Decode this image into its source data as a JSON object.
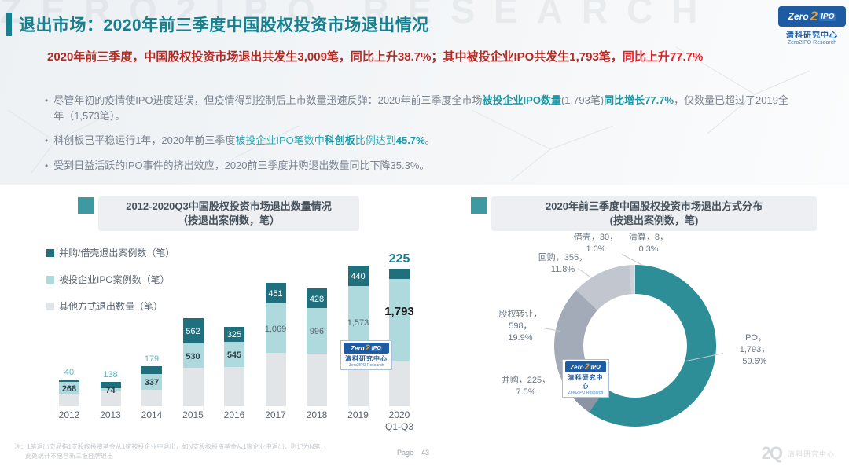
{
  "slide": {
    "title": "退出市场：2020年前三季度中国股权投资市场退出情况",
    "watermark_top": "ZERO2IPO RESEARCH",
    "summary_segments": [
      {
        "text": "2020年前三季度，中国股权投资市场退出共发生3,009笔，同比上升38.7%；其中被投企业IPO共发生1,793笔，",
        "style": "dark-red"
      },
      {
        "text": "同比上升77.7%",
        "style": "bright-red"
      }
    ],
    "bullets": [
      {
        "segments": [
          {
            "text": "尽管年初的疫情使IPO进度延误，但疫情得到控制后上市数量迅速反弹：2020年前三季度全市场",
            "style": "g"
          },
          {
            "text": "被投企业IPO数量",
            "style": "tb"
          },
          {
            "text": "(1,793笔)",
            "style": "g"
          },
          {
            "text": "同比增长77.7%",
            "style": "tb"
          },
          {
            "text": "，仅数量已超过了2019全年（1,573笔）。",
            "style": "g"
          }
        ]
      },
      {
        "segments": [
          {
            "text": "科创板已平稳运行1年，2020年前三季度",
            "style": "g"
          },
          {
            "text": "被投企业IPO笔数中",
            "style": "t"
          },
          {
            "text": "科创板",
            "style": "tb"
          },
          {
            "text": "比例达到",
            "style": "t"
          },
          {
            "text": "45.7%",
            "style": "tb"
          },
          {
            "text": "。",
            "style": "g"
          }
        ]
      },
      {
        "segments": [
          {
            "text": "受到日益活跃的IPO事件的挤出效应，2020前三季度并购退出数量同比下降35.3%。",
            "style": "g"
          }
        ]
      }
    ]
  },
  "logo": {
    "zero": "Zero",
    "two": "2",
    "ipo": "IPO",
    "cn": "清科研究中心",
    "en": "Zero2IPO Research"
  },
  "chart_data": [
    {
      "type": "bar",
      "stacked": true,
      "title": "2012-2020Q3中国股权投资市场退出数量情况",
      "subtitle": "（按退出案例数，笔）",
      "categories": [
        "2012",
        "2013",
        "2014",
        "2015",
        "2016",
        "2017",
        "2018",
        "2019",
        "2020 Q1-Q3"
      ],
      "categories_display": [
        [
          "2012"
        ],
        [
          "2013"
        ],
        [
          "2014"
        ],
        [
          "2015"
        ],
        [
          "2016"
        ],
        [
          "2017"
        ],
        [
          "2018"
        ],
        [
          "2019"
        ],
        [
          "2020",
          "Q1-Q3"
        ]
      ],
      "series": [
        {
          "name": "并购/借壳退出案例数（笔）",
          "color": "#1f6f7d",
          "values": [
            40,
            138,
            179,
            562,
            325,
            451,
            428,
            440,
            225
          ]
        },
        {
          "name": "被投企业IPO案例数（笔）",
          "color": "#aedade",
          "values": [
            268,
            74,
            337,
            530,
            545,
            1069,
            996,
            1573,
            1793
          ]
        },
        {
          "name": "其他方式退出数量（笔）",
          "color": "#e2e5e8",
          "values_estimated": [
            270,
            320,
            365,
            840,
            865,
            1175,
            1145,
            1055,
            991
          ],
          "note": "segments unlabeled in chart; estimated from bar heights"
        }
      ],
      "mna_labels": [
        "40",
        "138",
        "179",
        "562",
        "325",
        "451",
        "428",
        "440",
        "225"
      ],
      "ipo_labels": [
        "268",
        "74",
        "337",
        "530",
        "545",
        "1,069",
        "996",
        "1,573",
        "1,793"
      ],
      "mna_label_above": [
        true,
        true,
        true,
        false,
        false,
        false,
        false,
        false,
        true
      ],
      "ipo_label_bold": [
        true,
        true,
        true,
        true,
        true,
        false,
        false,
        false,
        true
      ],
      "legend_position": "top-left",
      "grid": false
    },
    {
      "type": "pie",
      "title": "2020年前三季度中国股权投资市场退出方式分布",
      "subtitle": "(按退出案例数，笔)",
      "start": "top",
      "direction": "clockwise",
      "slices": [
        {
          "label": "IPO",
          "value": 1793,
          "pct": 59.6,
          "color": "#2e8e98"
        },
        {
          "label": "并购",
          "value": 225,
          "pct": 7.5,
          "color": "#8a94a2"
        },
        {
          "label": "股权转让",
          "value": 598,
          "pct": 19.9,
          "color": "#a2abb7"
        },
        {
          "label": "回购",
          "value": 355,
          "pct": 11.8,
          "color": "#c2c7cf"
        },
        {
          "label": "借壳",
          "value": 30,
          "pct": 1.0,
          "color": "#ced3d9"
        },
        {
          "label": "清算",
          "value": 8,
          "pct": 0.3,
          "color": "#dde0e5"
        }
      ],
      "labels": [
        {
          "lines": [
            "借壳，30，",
            "1.0%"
          ]
        },
        {
          "lines": [
            "清算，8，",
            "0.3%"
          ]
        },
        {
          "lines": [
            "回购，355，",
            "11.8%"
          ]
        },
        {
          "lines": [
            "股权转让，",
            "598，",
            "19.9%"
          ]
        },
        {
          "lines": [
            "并购，225，",
            "7.5%"
          ]
        },
        {
          "lines": [
            "IPO，",
            "1,793，",
            "59.6%"
          ]
        }
      ]
    }
  ],
  "footer": {
    "note_line1": "注：1笔退出交易指1支股权投资基金从1家被投企业中退出，如N支股权投资基金从1家企业中退出，则记为N笔，",
    "note_line2": "此处统计不包含新三板挂牌退出",
    "page_label": "Page",
    "page_number": "43",
    "watermark_glyph": "2Q",
    "watermark_text": "清科研究中心"
  }
}
